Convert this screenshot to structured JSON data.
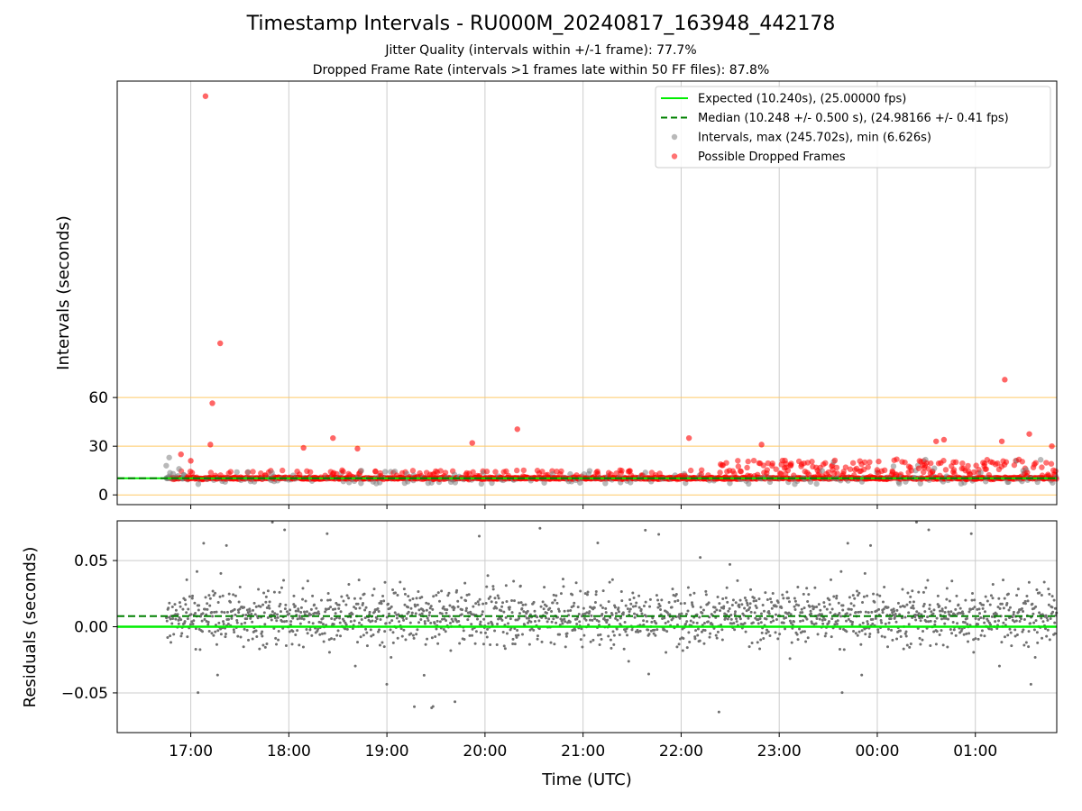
{
  "title": "Timestamp Intervals - RU000M_20240817_163948_442178",
  "subtitle_lines": [
    "Jitter Quality (intervals within +/-1 frame): 77.7%",
    "Dropped Frame Rate (intervals >1 frames late within 50 FF files): 87.8%"
  ],
  "colors": {
    "expected": "#00ee00",
    "median": "#008000",
    "intervals": "#808080",
    "dropped": "#ff0000",
    "threshold_lines": "#ffc966",
    "grid": "#cccccc"
  },
  "chart_data": [
    {
      "type": "scatter",
      "panel": "top",
      "xlabel": "",
      "ylabel": "Intervals (seconds)",
      "x_ticks": [
        "17:00",
        "18:00",
        "19:00",
        "20:00",
        "21:00",
        "22:00",
        "23:00",
        "00:00",
        "01:00"
      ],
      "x_range_hours": [
        16.25,
        25.83
      ],
      "ylim": [
        -6,
        255
      ],
      "y_ticks": [
        0,
        30,
        60
      ],
      "horizontal_lines": [
        0,
        30,
        60
      ],
      "grid": "vertical",
      "legend_position": "top-right",
      "legend": [
        {
          "label": "Expected (10.240s), (25.00000 fps)",
          "style": "solid-line",
          "color": "#00ee00"
        },
        {
          "label": "Median (10.248 +/- 0.500 s), (24.98166 +/- 0.41 fps)",
          "style": "dashed-line",
          "color": "#008000"
        },
        {
          "label": "Intervals, max (245.702s), min (6.626s)",
          "style": "marker",
          "color": "#808080"
        },
        {
          "label": "Possible Dropped Frames",
          "style": "marker",
          "color": "#ff0000"
        }
      ],
      "expected_interval": 10.24,
      "median_interval": 10.248,
      "time_span_hours": [
        16.75,
        25.83
      ],
      "max_interval": 245.702,
      "min_interval": 6.626,
      "notable_points": [
        {
          "time": 17.15,
          "value": 245.7
        },
        {
          "time": 17.3,
          "value": 93.4
        },
        {
          "time": 17.22,
          "value": 56.5
        },
        {
          "time": 17.2,
          "value": 31
        },
        {
          "time": 17.0,
          "value": 21
        },
        {
          "time": 16.9,
          "value": 25
        },
        {
          "time": 18.15,
          "value": 29
        },
        {
          "time": 18.45,
          "value": 35
        },
        {
          "time": 18.7,
          "value": 28.5
        },
        {
          "time": 19.87,
          "value": 32
        },
        {
          "time": 20.33,
          "value": 40.5
        },
        {
          "time": 22.08,
          "value": 35
        },
        {
          "time": 22.82,
          "value": 31
        },
        {
          "time": 24.6,
          "value": 33
        },
        {
          "time": 24.68,
          "value": 34
        },
        {
          "time": 25.3,
          "value": 71
        },
        {
          "time": 25.27,
          "value": 33
        },
        {
          "time": 25.55,
          "value": 37.5
        },
        {
          "time": 25.78,
          "value": 30
        }
      ]
    },
    {
      "type": "scatter",
      "panel": "bottom",
      "xlabel": "Time (UTC)",
      "ylabel": "Residuals (seconds)",
      "x_ticks": [
        "17:00",
        "18:00",
        "19:00",
        "20:00",
        "21:00",
        "22:00",
        "23:00",
        "00:00",
        "01:00"
      ],
      "ylim": [
        -0.08,
        0.08
      ],
      "y_ticks": [
        "0.05",
        "0.00",
        "−0.05"
      ],
      "y_tick_values": [
        0.05,
        0.0,
        -0.05
      ],
      "grid": "both",
      "expected_line": 0.0,
      "median_line": 0.008,
      "residual_spread": 0.015
    }
  ]
}
